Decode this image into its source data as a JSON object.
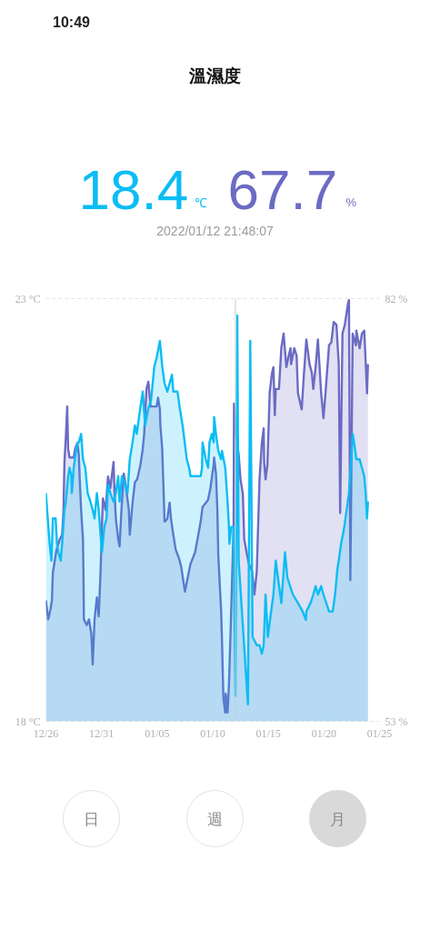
{
  "chart_data": {
    "type": "area",
    "title": "溫濕度",
    "annotations": [
      "10:49",
      "18.4",
      "℃",
      "67.7",
      "%",
      "2022/01/12 21:48:07",
      "日",
      "週",
      "月"
    ],
    "xlim": [
      "2021-12-26",
      "2022-01-25"
    ],
    "xticks": [
      {
        "value": "2021-12-26",
        "label": "12/26"
      },
      {
        "value": "2021-12-31",
        "label": "12/31"
      },
      {
        "value": "2022-01-05",
        "label": "01/05"
      },
      {
        "value": "2022-01-10",
        "label": "01/10"
      },
      {
        "value": "2022-01-15",
        "label": "01/15"
      },
      {
        "value": "2022-01-20",
        "label": "01/20"
      },
      {
        "value": "2022-01-25",
        "label": "01/25"
      }
    ],
    "ylim": [
      18,
      23
    ],
    "yticks": [
      {
        "value": 18,
        "label": "18 °C"
      },
      {
        "value": 23,
        "label": "23 °C"
      }
    ],
    "y2lim": [
      53,
      82
    ],
    "y2ticks": [
      {
        "value": 53,
        "label": "53 %"
      },
      {
        "value": 82,
        "label": "82 %"
      }
    ],
    "grid": "y",
    "ref_lines": [
      {
        "axis": "x",
        "value": "2022-01-12T01:00",
        "color": "#cccccc"
      }
    ],
    "series": [
      {
        "color": "#0abdf4",
        "x": [
          "2021-12-26T00:00",
          "2021-12-26T04:00",
          "2021-12-26T08:00",
          "2021-12-26T12:00",
          "2021-12-26T15:00",
          "2021-12-26T21:00",
          "2021-12-27T00:00",
          "2021-12-27T03:00",
          "2021-12-27T08:00",
          "2021-12-27T11:00",
          "2021-12-27T16:00",
          "2021-12-27T19:00",
          "2021-12-28T00:00",
          "2021-12-28T03:00",
          "2021-12-28T07:00",
          "2021-12-28T08:00",
          "2021-12-28T12:00",
          "2021-12-28T17:00",
          "2021-12-28T20:00",
          "2021-12-28T23:00",
          "2021-12-29T04:00",
          "2021-12-29T08:00",
          "2021-12-29T13:00",
          "2021-12-29T18:00",
          "2021-12-30T00:00",
          "2021-12-30T05:00",
          "2021-12-30T09:00",
          "2021-12-30T14:00",
          "2021-12-30T18:00",
          "2021-12-30T22:00",
          "2021-12-31T01:00",
          "2021-12-31T06:00",
          "2021-12-31T11:00",
          "2021-12-31T14:00",
          "2021-12-31T19:00",
          "2022-01-01T02:00",
          "2022-01-01T07:00",
          "2022-01-01T12:00",
          "2022-01-01T15:00",
          "2022-01-01T20:00",
          "2022-01-02T03:00",
          "2022-01-02T08:00",
          "2022-01-02T13:00",
          "2022-01-02T19:00",
          "2022-01-03T00:00",
          "2022-01-03T04:00",
          "2022-01-03T09:00",
          "2022-01-03T17:00",
          "2022-01-03T22:00",
          "2022-01-04T05:00",
          "2022-01-04T11:00",
          "2022-01-04T18:00",
          "2022-01-04T23:00",
          "2022-01-05T06:00",
          "2022-01-05T11:00",
          "2022-01-05T16:00",
          "2022-01-05T22:00",
          "2022-01-06T03:00",
          "2022-01-06T08:00",
          "2022-01-06T11:00",
          "2022-01-06T20:00",
          "2022-01-07T01:00",
          "2022-01-07T07:00",
          "2022-01-07T16:00",
          "2022-01-07T21:00",
          "2022-01-08T00:00",
          "2022-01-08T22:00",
          "2022-01-09T01:00",
          "2022-01-09T02:00",
          "2022-01-09T09:00",
          "2022-01-09T14:00",
          "2022-01-09T17:00",
          "2022-01-09T22:00",
          "2022-01-10T02:00",
          "2022-01-10T03:00",
          "2022-01-10T07:00",
          "2022-01-10T12:00",
          "2022-01-10T18:00",
          "2022-01-10T20:00",
          "2022-01-11T03:00",
          "2022-01-11T08:00",
          "2022-01-11T11:00",
          "2022-01-11T12:00",
          "2022-01-11T16:00",
          "2022-01-11T21:00",
          "2022-01-12T01:00",
          "2022-01-12T05:00",
          "2022-01-12T08:00",
          "2022-01-13T04:00",
          "2022-01-13T09:00",
          "2022-01-13T14:00",
          "2022-01-13T23:00",
          "2022-01-14T05:00",
          "2022-01-14T10:00",
          "2022-01-14T14:00",
          "2022-01-14T18:00",
          "2022-01-14T23:00",
          "2022-01-15T06:00",
          "2022-01-15T11:00",
          "2022-01-15T16:00",
          "2022-01-16T04:00",
          "2022-01-16T12:00",
          "2022-01-16T17:00",
          "2022-01-17T05:00",
          "2022-01-17T16:00",
          "2022-01-18T02:00",
          "2022-01-18T09:00",
          "2022-01-18T10:00",
          "2022-01-18T19:00",
          "2022-01-19T01:00",
          "2022-01-19T06:00",
          "2022-01-19T11:00",
          "2022-01-19T18:00",
          "2022-01-19T23:00",
          "2022-01-20T11:00",
          "2022-01-20T19:00",
          "2022-01-21T00:00",
          "2022-01-21T05:00",
          "2022-01-21T08:00",
          "2022-01-21T13:00",
          "2022-01-21T20:00",
          "2022-01-22T06:00",
          "2022-01-22T12:00",
          "2022-01-22T14:00",
          "2022-01-22T17:00",
          "2022-01-22T22:00",
          "2022-01-23T05:00",
          "2022-01-23T10:00",
          "2022-01-23T15:00",
          "2022-01-23T18:00",
          "2022-01-23T21:00",
          "2022-01-23T23:00"
        ],
        "values": [
          20.7,
          20.4,
          20.1,
          19.9,
          20.4,
          20.4,
          20.1,
          20.0,
          19.9,
          20.1,
          20.5,
          20.6,
          20.9,
          21.0,
          20.9,
          20.7,
          21.0,
          21.2,
          21.3,
          21.3,
          21.4,
          21.1,
          21.0,
          20.7,
          20.6,
          20.5,
          20.4,
          20.7,
          20.5,
          20.2,
          20.0,
          20.3,
          20.4,
          20.8,
          20.7,
          20.6,
          20.7,
          20.9,
          20.6,
          20.9,
          20.8,
          20.7,
          21.1,
          21.3,
          21.5,
          21.4,
          21.6,
          21.9,
          21.5,
          21.7,
          21.8,
          22.2,
          22.3,
          22.5,
          22.2,
          22.0,
          21.9,
          22.0,
          22.1,
          21.9,
          21.9,
          21.7,
          21.5,
          21.1,
          21.0,
          20.9,
          20.9,
          21.0,
          21.3,
          21.1,
          21.0,
          21.3,
          21.4,
          21.3,
          21.6,
          21.4,
          21.2,
          21.1,
          21.2,
          21.0,
          20.6,
          20.3,
          20.1,
          20.3,
          20.3,
          18.3,
          22.8,
          19.9,
          18.2,
          22.5,
          19.0,
          18.9,
          18.9,
          18.8,
          18.9,
          19.5,
          19.0,
          19.3,
          19.5,
          19.9,
          19.4,
          20.0,
          19.7,
          19.5,
          19.4,
          19.3,
          19.2,
          19.3,
          19.4,
          19.5,
          19.6,
          19.5,
          19.6,
          19.5,
          19.3,
          19.3,
          19.5,
          19.8,
          19.9,
          20.1,
          20.3,
          20.7,
          21.2,
          21.4,
          21.3,
          21.1,
          21.1,
          21.0,
          20.9,
          20.7,
          20.4,
          20.6
        ]
      },
      {
        "color": "#6b6bc4",
        "axis": "y2",
        "x": [
          "2021-12-26T00:00",
          "2021-12-26T05:00",
          "2021-12-26T10:00",
          "2021-12-26T13:00",
          "2021-12-26T15:00",
          "2021-12-26T23:00",
          "2021-12-27T06:00",
          "2021-12-27T11:00",
          "2021-12-27T14:00",
          "2021-12-27T16:00",
          "2021-12-27T19:00",
          "2021-12-27T22:00",
          "2021-12-28T00:00",
          "2021-12-28T03:00",
          "2021-12-28T12:00",
          "2021-12-28T15:00",
          "2021-12-28T20:00",
          "2021-12-28T23:00",
          "2021-12-29T01:00",
          "2021-12-29T04:00",
          "2021-12-29T08:00",
          "2021-12-29T09:00",
          "2021-12-29T10:00",
          "2021-12-29T16:00",
          "2021-12-29T21:00",
          "2021-12-30T02:00",
          "2021-12-30T05:00",
          "2021-12-30T09:00",
          "2021-12-30T14:00",
          "2021-12-30T18:00",
          "2021-12-30T22:00",
          "2021-12-31T01:00",
          "2021-12-31T03:00",
          "2021-12-31T09:00",
          "2021-12-31T14:00",
          "2021-12-31T19:00",
          "2022-01-01T02:00",
          "2022-01-01T04:00",
          "2022-01-01T07:00",
          "2022-01-01T12:00",
          "2022-01-01T15:00",
          "2022-01-01T19:00",
          "2022-01-02T00:00",
          "2022-01-02T05:00",
          "2022-01-02T11:00",
          "2022-01-02T13:00",
          "2022-01-02T19:00",
          "2022-01-03T00:00",
          "2022-01-03T05:00",
          "2022-01-03T12:00",
          "2022-01-03T17:00",
          "2022-01-03T20:00",
          "2022-01-04T01:00",
          "2022-01-04T05:00",
          "2022-01-04T10:00",
          "2022-01-04T23:00",
          "2022-01-05T02:00",
          "2022-01-05T06:00",
          "2022-01-05T07:00",
          "2022-01-05T11:00",
          "2022-01-05T14:00",
          "2022-01-05T16:00",
          "2022-01-05T22:00",
          "2022-01-06T03:00",
          "2022-01-06T06:00",
          "2022-01-06T11:00",
          "2022-01-06T16:00",
          "2022-01-06T23:00",
          "2022-01-07T04:00",
          "2022-01-07T12:00",
          "2022-01-07T17:00",
          "2022-01-08T00:00",
          "2022-01-08T10:00",
          "2022-01-08T22:00",
          "2022-01-09T02:00",
          "2022-01-09T14:00",
          "2022-01-09T19:00",
          "2022-01-10T02:00",
          "2022-01-10T03:00",
          "2022-01-10T07:00",
          "2022-01-10T10:00",
          "2022-01-10T12:00",
          "2022-01-10T15:00",
          "2022-01-10T18:00",
          "2022-01-10T20:00",
          "2022-01-10T23:00",
          "2022-01-11T03:00",
          "2022-01-11T04:00",
          "2022-01-11T08:00",
          "2022-01-11T11:00",
          "2022-01-11T16:00",
          "2022-01-11T21:00",
          "2022-01-11T22:00",
          "2022-01-12T03:00",
          "2022-01-12T08:00",
          "2022-01-12T12:00",
          "2022-01-12T17:00",
          "2022-01-12T20:00",
          "2022-01-13T01:00",
          "2022-01-13T06:00",
          "2022-01-13T13:00",
          "2022-01-13T18:00",
          "2022-01-13T23:00",
          "2022-01-14T05:00",
          "2022-01-14T10:00",
          "2022-01-14T14:00",
          "2022-01-14T15:00",
          "2022-01-14T18:00",
          "2022-01-14T22:00",
          "2022-01-15T03:00",
          "2022-01-15T08:00",
          "2022-01-15T11:00",
          "2022-01-15T14:00",
          "2022-01-15T16:00",
          "2022-01-15T23:00",
          "2022-01-16T04:00",
          "2022-01-16T09:00",
          "2022-01-16T15:00",
          "2022-01-16T20:00",
          "2022-01-17T00:00",
          "2022-01-17T01:00",
          "2022-01-17T08:00",
          "2022-01-17T13:00",
          "2022-01-17T16:00",
          "2022-01-18T00:00",
          "2022-01-18T05:00",
          "2022-01-18T10:00",
          "2022-01-18T17:00",
          "2022-01-18T22:00",
          "2022-01-19T01:00",
          "2022-01-19T06:00",
          "2022-01-19T11:00",
          "2022-01-19T18:00",
          "2022-01-19T23:00",
          "2022-01-20T04:00",
          "2022-01-20T11:00",
          "2022-01-20T16:00",
          "2022-01-20T21:00",
          "2022-01-21T03:00",
          "2022-01-21T08:00",
          "2022-01-21T11:00",
          "2022-01-21T16:00",
          "2022-01-21T21:00",
          "2022-01-22T04:00",
          "2022-01-22T06:00",
          "2022-01-22T09:00",
          "2022-01-22T14:00",
          "2022-01-22T21:00",
          "2022-01-22T22:00",
          "2022-01-23T05:00",
          "2022-01-23T10:00",
          "2022-01-23T15:00",
          "2022-01-23T18:00",
          "2022-01-23T21:00",
          "2022-01-23T23:00"
        ],
        "values": [
          61.3,
          60.0,
          60.7,
          61.3,
          63.2,
          64.8,
          65.5,
          65.8,
          67.5,
          70.8,
          72.5,
          74.6,
          71.7,
          71.1,
          71.1,
          71.7,
          72.1,
          71.3,
          69.6,
          67.5,
          65.5,
          63.3,
          60.0,
          59.6,
          60.0,
          59.0,
          56.9,
          60.0,
          61.5,
          60.2,
          63.3,
          66.5,
          68.3,
          67.5,
          69.8,
          69.0,
          70.8,
          68.8,
          66.9,
          65.5,
          65.0,
          67.5,
          70.0,
          69.0,
          67.5,
          65.8,
          68.0,
          69.4,
          69.6,
          70.6,
          71.7,
          72.7,
          75.8,
          76.3,
          74.6,
          74.6,
          75.2,
          74.4,
          73.3,
          71.7,
          68.8,
          66.7,
          66.9,
          68.0,
          66.9,
          65.8,
          64.8,
          64.2,
          63.6,
          61.9,
          62.7,
          63.8,
          64.6,
          66.7,
          67.7,
          68.2,
          69.0,
          70.6,
          71.1,
          70.0,
          67.5,
          64.4,
          62.5,
          60.7,
          58.6,
          54.6,
          53.6,
          54.9,
          53.6,
          55.5,
          60.7,
          66.3,
          74.8,
          72.5,
          71.3,
          69.6,
          68.6,
          65.5,
          64.6,
          63.8,
          63.3,
          61.7,
          63.3,
          69.6,
          72.1,
          73.1,
          70.8,
          69.6,
          70.6,
          75.6,
          76.9,
          77.3,
          74.0,
          75.8,
          75.8,
          78.6,
          79.6,
          77.3,
          78.1,
          78.6,
          77.5,
          78.6,
          78.1,
          75.5,
          74.4,
          76.9,
          79.2,
          77.5,
          76.9,
          75.8,
          77.3,
          79.2,
          75.5,
          73.8,
          75.8,
          78.8,
          79.0,
          80.4,
          80.2,
          77.5,
          67.3,
          79.6,
          80.2,
          81.7,
          81.9,
          62.7,
          79.6,
          78.8,
          79.8,
          78.6,
          79.6,
          79.8,
          77.7,
          75.5,
          77.5
        ]
      }
    ]
  }
}
